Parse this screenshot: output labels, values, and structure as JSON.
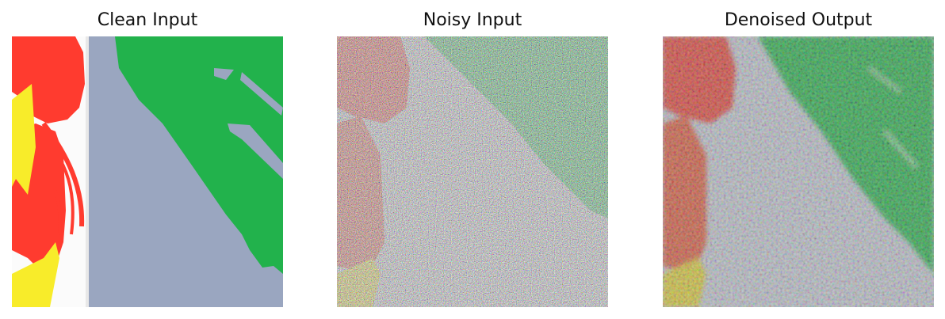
{
  "figure": {
    "panels": [
      {
        "title": "Clean Input"
      },
      {
        "title": "Noisy Input"
      },
      {
        "title": "Denoised Output"
      }
    ]
  },
  "colors": {
    "red": "#ff3b2f",
    "yellow": "#f8ec2a",
    "green": "#22b24c",
    "gray_blue": "#9aa6c0",
    "white": "#fbfbfb"
  }
}
